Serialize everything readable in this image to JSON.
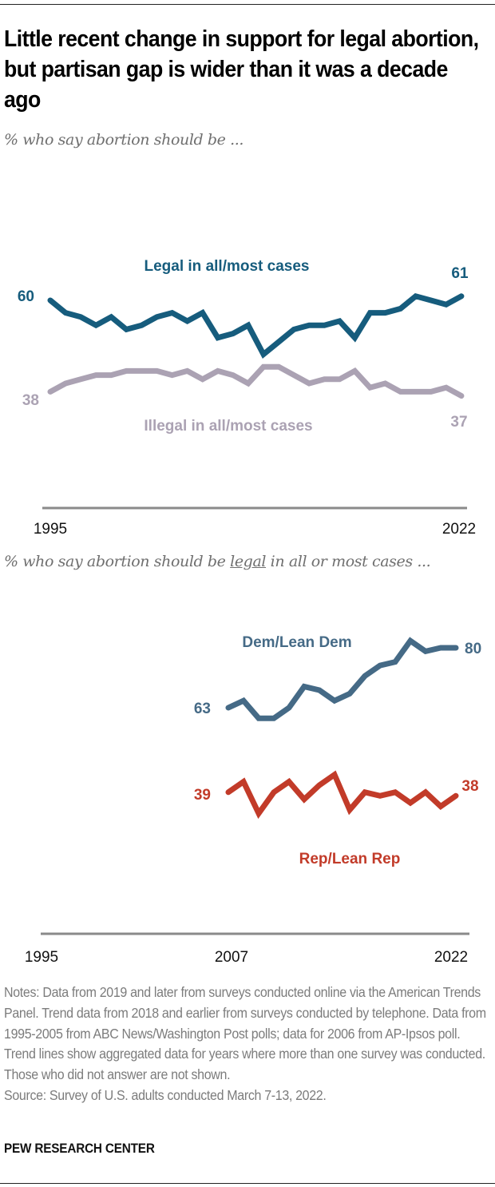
{
  "header": {
    "title": "Little recent change in support for legal abortion, but partisan gap is wider than it was a decade ago",
    "subtitle_top": "% who say abortion should be ...",
    "subtitle_bottom_pre": "% who say abortion should be ",
    "subtitle_bottom_emph": "legal",
    "subtitle_bottom_post": " in all or most cases ..."
  },
  "chart_data": [
    {
      "type": "line",
      "title": "% who say abortion should be ...",
      "xlabel": "",
      "ylabel": "",
      "x": [
        1995,
        1996,
        1997,
        1998,
        1999,
        2000,
        2001,
        2002,
        2003,
        2004,
        2005,
        2006,
        2007,
        2008,
        2009,
        2010,
        2011,
        2012,
        2013,
        2014,
        2015,
        2016,
        2017,
        2018,
        2019,
        2020,
        2021,
        2022
      ],
      "x_ticks": [
        "1995",
        "2022"
      ],
      "grid": false,
      "series": [
        {
          "name": "Legal in all/most cases",
          "color": "#165C7D",
          "values": [
            60,
            57,
            56,
            54,
            56,
            53,
            54,
            56,
            57,
            55,
            57,
            51,
            52,
            54,
            47,
            50,
            53,
            54,
            54,
            55,
            51,
            57,
            57,
            58,
            61,
            60,
            59,
            61
          ],
          "start_label": "60",
          "end_label": "61"
        },
        {
          "name": "Illegal in all/most cases",
          "color": "#ABA2B3",
          "values": [
            38,
            40,
            41,
            42,
            42,
            43,
            43,
            43,
            42,
            43,
            41,
            43,
            42,
            40,
            44,
            44,
            42,
            40,
            41,
            41,
            43,
            39,
            40,
            38,
            38,
            38,
            39,
            37
          ],
          "start_label": "38",
          "end_label": "37"
        }
      ]
    },
    {
      "type": "line",
      "title": "% who say abortion should be legal in all or most cases ...",
      "xlabel": "",
      "ylabel": "",
      "x_range": [
        1995,
        2022
      ],
      "x": [
        2007,
        2008,
        2009,
        2010,
        2011,
        2012,
        2013,
        2014,
        2015,
        2016,
        2017,
        2018,
        2019,
        2020,
        2021,
        2022
      ],
      "x_ticks": [
        "1995",
        "2007",
        "2022"
      ],
      "grid": false,
      "series": [
        {
          "name": "Dem/Lean Dem",
          "color": "#456A86",
          "values": [
            63,
            65,
            60,
            60,
            63,
            69,
            68,
            65,
            67,
            72,
            75,
            76,
            82,
            79,
            80,
            80
          ],
          "start_label": "63",
          "end_label": "80"
        },
        {
          "name": "Rep/Lean Rep",
          "color": "#C23B29",
          "values": [
            39,
            42,
            33,
            39,
            42,
            37,
            41,
            44,
            34,
            39,
            38,
            39,
            36,
            39,
            35,
            38
          ],
          "start_label": "39",
          "end_label": "38"
        }
      ]
    }
  ],
  "notes": "Notes: Data from 2019 and later from surveys conducted online via the American Trends Panel. Trend data from 2018 and earlier from surveys conducted by telephone. Data from 1995-2005 from ABC News/Washington Post polls; data for 2006 from AP-Ipsos poll. Trend lines show aggregated data for years where more than one survey was conducted. Those who did not answer are not shown.",
  "source": "Source: Survey of U.S. adults conducted March 7-13, 2022.",
  "footer": "PEW RESEARCH CENTER"
}
